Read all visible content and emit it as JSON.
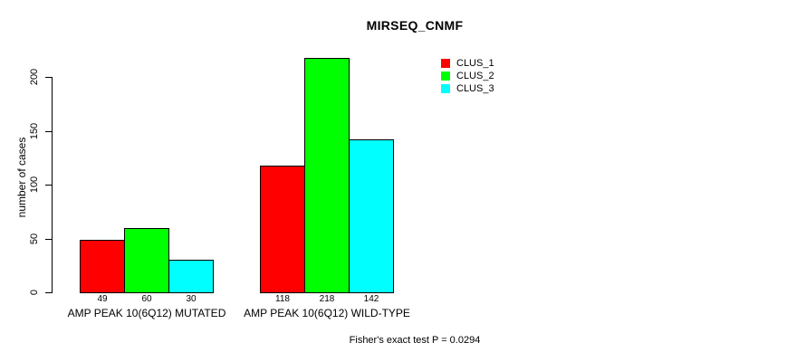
{
  "chart_data": {
    "type": "bar",
    "title": "MIRSEQ_CNMF",
    "ylabel": "number of cases",
    "xlabel": "",
    "ylim": [
      0,
      230
    ],
    "yticks": [
      0,
      50,
      100,
      150,
      200
    ],
    "grid": false,
    "legend_position": "top-right",
    "show_bar_values": true,
    "categories": [
      "AMP PEAK 10(6Q12) MUTATED",
      "AMP PEAK 10(6Q12) WILD-TYPE"
    ],
    "series": [
      {
        "name": "CLUS_1",
        "color": "#FF0000",
        "values": [
          49,
          118
        ]
      },
      {
        "name": "CLUS_2",
        "color": "#00FF00",
        "values": [
          60,
          218
        ]
      },
      {
        "name": "CLUS_3",
        "color": "#00FFFF",
        "values": [
          30,
          142
        ]
      }
    ],
    "annotation": "Fisher's exact test P = 0.0294"
  },
  "colors": {
    "background": "#FFFFFF",
    "bar_border": "#000000",
    "text": "#000000"
  }
}
